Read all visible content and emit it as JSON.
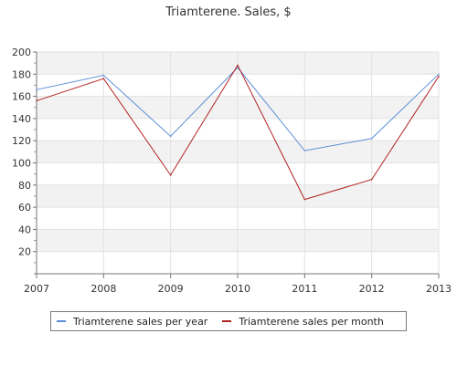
{
  "chart_data": {
    "type": "line",
    "title": "Triamterene. Sales, $",
    "xlabel": "",
    "ylabel": "",
    "categories": [
      "2007",
      "2008",
      "2009",
      "2010",
      "2011",
      "2012",
      "2013"
    ],
    "y_ticks": [
      "20",
      "40",
      "60",
      "80",
      "100",
      "120",
      "140",
      "160",
      "180",
      "200"
    ],
    "ylim": [
      0,
      200
    ],
    "grid": "horizontal bands, alternating light gray",
    "legend_position": "bottom",
    "series": [
      {
        "name": "Triamterene sales per year",
        "color": "#5b8ed6",
        "values": [
          166,
          179,
          124,
          186,
          111,
          122,
          180
        ]
      },
      {
        "name": "Triamterene sales per month",
        "color": "#b22222",
        "values": [
          156,
          176,
          89,
          188,
          67,
          85,
          178
        ]
      }
    ]
  }
}
